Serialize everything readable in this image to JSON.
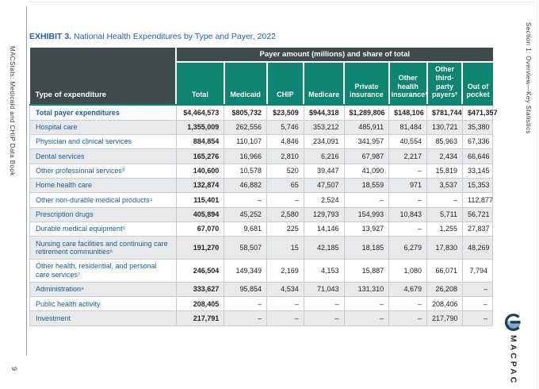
{
  "colors": {
    "teal": "#0e8570",
    "dark": "#404a4b",
    "rowgray": "#e8e9ea",
    "labelblue": "#215c99",
    "titleblue": "#2164ad",
    "border": "#c9cdd0",
    "ink": "#222222"
  },
  "spine": {
    "book_title": "MACStats: Medicaid and CHIP Data Book",
    "page_number": "9"
  },
  "margin": {
    "section_label": "Section 1: Overview—Key Statistics"
  },
  "exhibit": {
    "label": "EXHIBIT 3.",
    "title": " National Health Expenditures by Type and Payer, 2022"
  },
  "logo": {
    "wordmark": "MACPAC"
  },
  "table": {
    "spanner": "Payer amount (millions) and share of total",
    "row_header": "Type of expenditure",
    "columns": [
      "Total",
      "Medicaid",
      "CHIP",
      "Medicare",
      "Private insurance",
      "Other health insurance¹",
      "Other third-party payers²",
      "Out of pocket"
    ],
    "rows": [
      {
        "label": "Total payer expenditures",
        "values": [
          "$4,464,573",
          "$805,732",
          "$23,509",
          "$944,318",
          "$1,289,806",
          "$148,106",
          "$781,744",
          "$471,357"
        ]
      },
      {
        "label": "Hospital care",
        "values": [
          "1,355,009",
          "262,556",
          "5,746",
          "353,212",
          "485,911",
          "81,484",
          "130,721",
          "35,380"
        ]
      },
      {
        "label": "Physician and clinical services",
        "values": [
          "884,854",
          "110,107",
          "4,846",
          "234,091",
          "341,957",
          "40,554",
          "85,963",
          "67,336"
        ]
      },
      {
        "label": "Dental services",
        "values": [
          "165,276",
          "16,966",
          "2,810",
          "6,216",
          "67,987",
          "2,217",
          "2,434",
          "66,646"
        ]
      },
      {
        "label": "Other professional services³",
        "values": [
          "140,600",
          "10,578",
          "520",
          "39,447",
          "41,090",
          "–",
          "15,819",
          "33,145"
        ]
      },
      {
        "label": "Home health care",
        "values": [
          "132,874",
          "46,882",
          "65",
          "47,507",
          "18,559",
          "971",
          "3,537",
          "15,353"
        ]
      },
      {
        "label": "Other non-durable medical products⁴",
        "values": [
          "115,401",
          "–",
          "–",
          "2,524",
          "–",
          "–",
          "–",
          "112,877"
        ]
      },
      {
        "label": "Prescription drugs",
        "values": [
          "405,894",
          "45,252",
          "2,580",
          "129,793",
          "154,993",
          "10,843",
          "5,711",
          "56,721"
        ]
      },
      {
        "label": "Durable medical equipment⁵",
        "values": [
          "67,070",
          "9,681",
          "225",
          "14,146",
          "13,927",
          "–",
          "1,255",
          "27,837"
        ]
      },
      {
        "label": "Nursing care facilities and continuing care retirement communities⁶",
        "values": [
          "191,270",
          "58,507",
          "15",
          "42,185",
          "18,185",
          "6,279",
          "17,830",
          "48,269"
        ]
      },
      {
        "label": "Other health, residential, and personal care services⁷",
        "values": [
          "246,504",
          "149,349",
          "2,169",
          "4,153",
          "15,887",
          "1,080",
          "66,071",
          "7,794"
        ]
      },
      {
        "label": "Administration⁸",
        "values": [
          "333,627",
          "95,854",
          "4,534",
          "71,043",
          "131,310",
          "4,679",
          "26,208",
          "–"
        ]
      },
      {
        "label": "Public health activity",
        "values": [
          "208,405",
          "–",
          "–",
          "–",
          "–",
          "–",
          "208,406",
          "–"
        ]
      },
      {
        "label": "Investment",
        "values": [
          "217,791",
          "–",
          "–",
          "–",
          "–",
          "–",
          "217,790",
          "–"
        ]
      }
    ]
  }
}
